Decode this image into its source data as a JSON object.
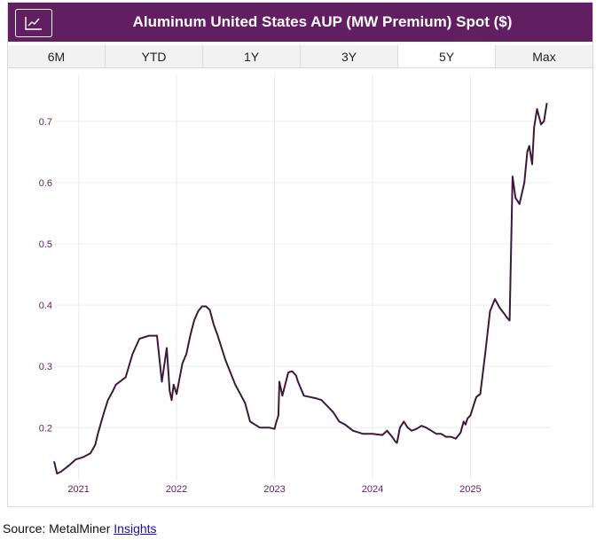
{
  "header": {
    "title": "Aluminum United States AUP (MW Premium) Spot ($)",
    "icon": "line-chart-icon"
  },
  "tabs": [
    "6M",
    "YTD",
    "1Y",
    "3Y",
    "5Y",
    "Max"
  ],
  "active_tab": "5Y",
  "source": {
    "prefix": "Source: MetalMiner ",
    "link": "Insights"
  },
  "colors": {
    "header_bg": "#611e60",
    "line": "#3d1a3a",
    "tick": "#611e60"
  },
  "chart_data": {
    "type": "line",
    "title": "Aluminum United States AUP (MW Premium) Spot ($)",
    "xlabel": "",
    "ylabel": "",
    "xlim": [
      2020.75,
      2025.82
    ],
    "ylim": [
      0.115,
      0.775
    ],
    "x_ticks": [
      2021,
      2022,
      2023,
      2024,
      2025
    ],
    "x_tick_labels": [
      "2021",
      "2022",
      "2023",
      "2024",
      "2025"
    ],
    "y_ticks": [
      0.2,
      0.3,
      0.4,
      0.5,
      0.6,
      0.7
    ],
    "y_tick_labels": [
      "0.2",
      "0.3",
      "0.4",
      "0.5",
      "0.6",
      "0.7"
    ],
    "grid": true,
    "series": [
      {
        "name": "AUP (MW Premium) Spot",
        "x": [
          2020.75,
          2020.78,
          2020.82,
          2020.9,
          2020.97,
          2021.05,
          2021.12,
          2021.17,
          2021.2,
          2021.26,
          2021.3,
          2021.35,
          2021.38,
          2021.42,
          2021.48,
          2021.55,
          2021.62,
          2021.68,
          2021.72,
          2021.75,
          2021.8,
          2021.85,
          2021.9,
          2021.93,
          2021.95,
          2021.97,
          2022.0,
          2022.03,
          2022.06,
          2022.1,
          2022.14,
          2022.18,
          2022.22,
          2022.26,
          2022.3,
          2022.34,
          2022.38,
          2022.42,
          2022.46,
          2022.5,
          2022.55,
          2022.6,
          2022.65,
          2022.7,
          2022.75,
          2022.8,
          2022.85,
          2022.9,
          2022.95,
          2023.0,
          2023.02,
          2023.04,
          2023.05,
          2023.08,
          2023.1,
          2023.14,
          2023.18,
          2023.22,
          2023.24,
          2023.3,
          2023.36,
          2023.42,
          2023.48,
          2023.54,
          2023.6,
          2023.66,
          2023.72,
          2023.8,
          2023.9,
          2024.0,
          2024.1,
          2024.15,
          2024.2,
          2024.23,
          2024.25,
          2024.28,
          2024.32,
          2024.36,
          2024.4,
          2024.45,
          2024.5,
          2024.55,
          2024.6,
          2024.65,
          2024.7,
          2024.75,
          2024.8,
          2024.85,
          2024.9,
          2024.93,
          2024.95,
          2024.97,
          2025.0,
          2025.03,
          2025.06,
          2025.1,
          2025.15,
          2025.2,
          2025.25,
          2025.3,
          2025.35,
          2025.37,
          2025.4,
          2025.43,
          2025.46,
          2025.5,
          2025.55,
          2025.58,
          2025.6,
          2025.63,
          2025.65,
          2025.68,
          2025.72,
          2025.75,
          2025.78
        ],
        "y": [
          0.145,
          0.125,
          0.128,
          0.138,
          0.148,
          0.152,
          0.158,
          0.172,
          0.192,
          0.225,
          0.245,
          0.26,
          0.27,
          0.275,
          0.282,
          0.32,
          0.345,
          0.348,
          0.35,
          0.35,
          0.35,
          0.275,
          0.33,
          0.26,
          0.245,
          0.27,
          0.255,
          0.28,
          0.305,
          0.32,
          0.35,
          0.375,
          0.39,
          0.398,
          0.398,
          0.392,
          0.368,
          0.35,
          0.33,
          0.31,
          0.29,
          0.27,
          0.255,
          0.24,
          0.21,
          0.205,
          0.2,
          0.2,
          0.2,
          0.198,
          0.21,
          0.22,
          0.275,
          0.252,
          0.265,
          0.29,
          0.292,
          0.285,
          0.275,
          0.252,
          0.25,
          0.248,
          0.245,
          0.235,
          0.225,
          0.21,
          0.205,
          0.195,
          0.19,
          0.19,
          0.188,
          0.195,
          0.185,
          0.178,
          0.175,
          0.2,
          0.21,
          0.2,
          0.195,
          0.198,
          0.203,
          0.2,
          0.195,
          0.19,
          0.19,
          0.185,
          0.185,
          0.182,
          0.192,
          0.21,
          0.205,
          0.215,
          0.22,
          0.235,
          0.25,
          0.255,
          0.32,
          0.39,
          0.41,
          0.395,
          0.385,
          0.38,
          0.375,
          0.61,
          0.575,
          0.565,
          0.6,
          0.65,
          0.66,
          0.63,
          0.69,
          0.72,
          0.695,
          0.7,
          0.73
        ]
      }
    ]
  }
}
